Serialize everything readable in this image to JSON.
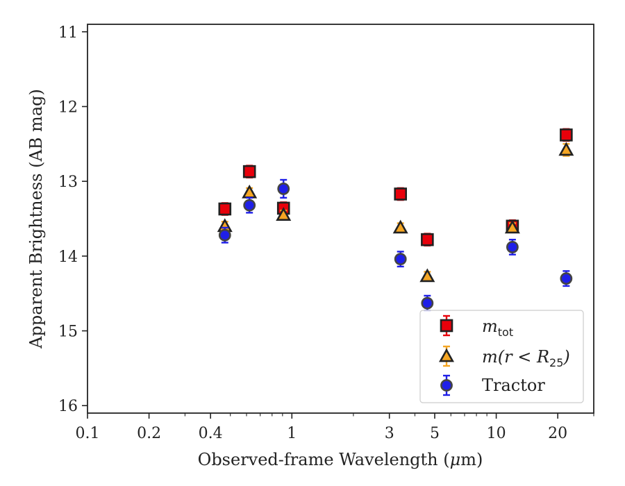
{
  "chart_data": {
    "type": "scatter",
    "xlabel_main": "Observed-frame Wavelength (",
    "xlabel_mu": "μ",
    "xlabel_unit": "m)",
    "ylabel": "Apparent Brightness (AB mag)",
    "x_scale": "log",
    "xlim": [
      0.1,
      30
    ],
    "ylim": [
      16.1,
      10.9
    ],
    "y_inverted": true,
    "grid": false,
    "legend_position": "lower-right",
    "x_ticks": [
      {
        "value": 0.1,
        "label": "0.1"
      },
      {
        "value": 0.2,
        "label": "0.2"
      },
      {
        "value": 0.4,
        "label": "0.4"
      },
      {
        "value": 1,
        "label": "1"
      },
      {
        "value": 3,
        "label": "3"
      },
      {
        "value": 5,
        "label": "5"
      },
      {
        "value": 10,
        "label": "10"
      },
      {
        "value": 20,
        "label": "20"
      }
    ],
    "y_ticks": [
      {
        "value": 11,
        "label": "11"
      },
      {
        "value": 12,
        "label": "12"
      },
      {
        "value": 13,
        "label": "13"
      },
      {
        "value": 14,
        "label": "14"
      },
      {
        "value": 15,
        "label": "15"
      },
      {
        "value": 16,
        "label": "16"
      }
    ],
    "series": [
      {
        "name_main": "m",
        "name_sub": "tot",
        "marker": "square",
        "color": "#e8000b",
        "error_color": "#e8000b",
        "points": [
          {
            "x": 0.47,
            "y": 13.37,
            "err": 0.08
          },
          {
            "x": 0.62,
            "y": 12.87,
            "err": 0.08
          },
          {
            "x": 0.91,
            "y": 13.36,
            "err": 0.08
          },
          {
            "x": 3.4,
            "y": 13.17,
            "err": 0.08
          },
          {
            "x": 4.6,
            "y": 13.78,
            "err": 0.08
          },
          {
            "x": 12,
            "y": 13.6,
            "err": 0.08
          },
          {
            "x": 22,
            "y": 12.38,
            "err": 0.08
          }
        ]
      },
      {
        "name_main": "m(r < R",
        "name_sub": "25",
        "name_tail": ")",
        "marker": "triangle",
        "color": "#f5a623",
        "error_color": "#f5a623",
        "points": [
          {
            "x": 0.47,
            "y": 13.6,
            "err": 0.06
          },
          {
            "x": 0.62,
            "y": 13.15,
            "err": 0.06
          },
          {
            "x": 0.91,
            "y": 13.45,
            "err": 0.06
          },
          {
            "x": 3.4,
            "y": 13.62,
            "err": 0.06
          },
          {
            "x": 4.6,
            "y": 14.27,
            "err": 0.06
          },
          {
            "x": 12,
            "y": 13.62,
            "err": 0.06
          },
          {
            "x": 22,
            "y": 12.58,
            "err": 0.08
          }
        ]
      },
      {
        "name": "Tractor",
        "marker": "circle",
        "color": "#1f1fe8",
        "error_color": "#1f1fe8",
        "points": [
          {
            "x": 0.47,
            "y": 13.72,
            "err": 0.1
          },
          {
            "x": 0.62,
            "y": 13.32,
            "err": 0.1
          },
          {
            "x": 0.91,
            "y": 13.1,
            "err": 0.12
          },
          {
            "x": 3.4,
            "y": 14.04,
            "err": 0.1
          },
          {
            "x": 4.6,
            "y": 14.63,
            "err": 0.1
          },
          {
            "x": 12,
            "y": 13.88,
            "err": 0.1
          },
          {
            "x": 22,
            "y": 14.3,
            "err": 0.1
          }
        ]
      }
    ]
  }
}
